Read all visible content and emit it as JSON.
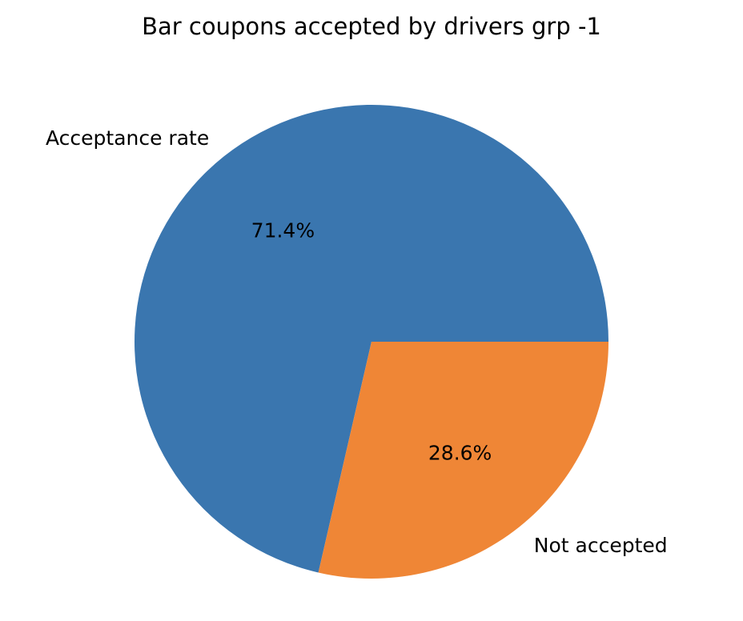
{
  "chart_data": {
    "type": "pie",
    "title": "Bar coupons accepted by drivers grp -1",
    "slices": [
      {
        "label": "Acceptance rate",
        "value": 71.4,
        "pct_label": "71.4%",
        "color": "#3a76af"
      },
      {
        "label": "Not accepted",
        "value": 28.6,
        "pct_label": "28.6%",
        "color": "#ef8636"
      }
    ],
    "start_angle_deg": 0,
    "direction": "counterclockwise"
  }
}
